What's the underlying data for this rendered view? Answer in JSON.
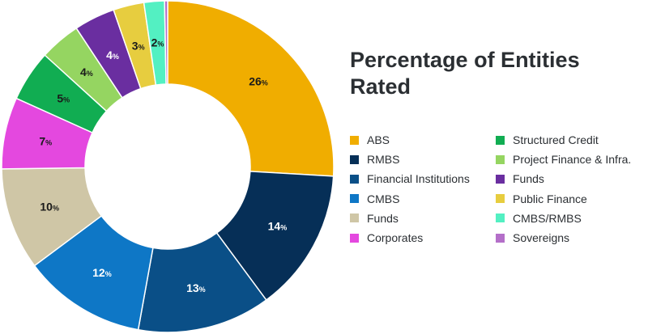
{
  "chart_data": {
    "type": "pie",
    "variant": "donut",
    "title": "Percentage of Entities Rated",
    "label_suffix": "%",
    "slices": [
      {
        "label": "ABS",
        "value": 26,
        "color": "#f0ad00",
        "label_color": "#1a1a1a"
      },
      {
        "label": "RMBS",
        "value": 14,
        "color": "#062f57",
        "label_color": "#ffffff"
      },
      {
        "label": "Financial Institutions",
        "value": 13,
        "color": "#0a4f87",
        "label_color": "#ffffff"
      },
      {
        "label": "CMBS",
        "value": 12,
        "color": "#0e77c6",
        "label_color": "#ffffff"
      },
      {
        "label": "Funds",
        "value": 10,
        "color": "#cfc6a6",
        "label_color": "#1a1a1a"
      },
      {
        "label": "Corporates",
        "value": 7,
        "color": "#e448df",
        "label_color": "#1a1a1a"
      },
      {
        "label": "Structured Credit",
        "value": 5,
        "color": "#11ad52",
        "label_color": "#1a1a1a"
      },
      {
        "label": "Project Finance & Infra.",
        "value": 4,
        "color": "#95d561",
        "label_color": "#1a1a1a"
      },
      {
        "label": "Funds",
        "value": 4,
        "color": "#6a2ea0",
        "label_color": "#ffffff"
      },
      {
        "label": "Public Finance",
        "value": 3,
        "color": "#e7cd3f",
        "label_color": "#1a1a1a"
      },
      {
        "label": "CMBS/RMBS",
        "value": 2,
        "color": "#53f0c2",
        "label_color": "#1a1a1a"
      },
      {
        "label": "Sovereigns",
        "value": 0.3,
        "color": "#b46fc9",
        "label_color": "#1a1a1a"
      }
    ],
    "legend": {
      "placement": "right",
      "columns": 2,
      "col1": [
        0,
        1,
        2,
        3,
        4,
        5
      ],
      "col2": [
        6,
        7,
        8,
        9,
        10,
        11
      ]
    }
  }
}
